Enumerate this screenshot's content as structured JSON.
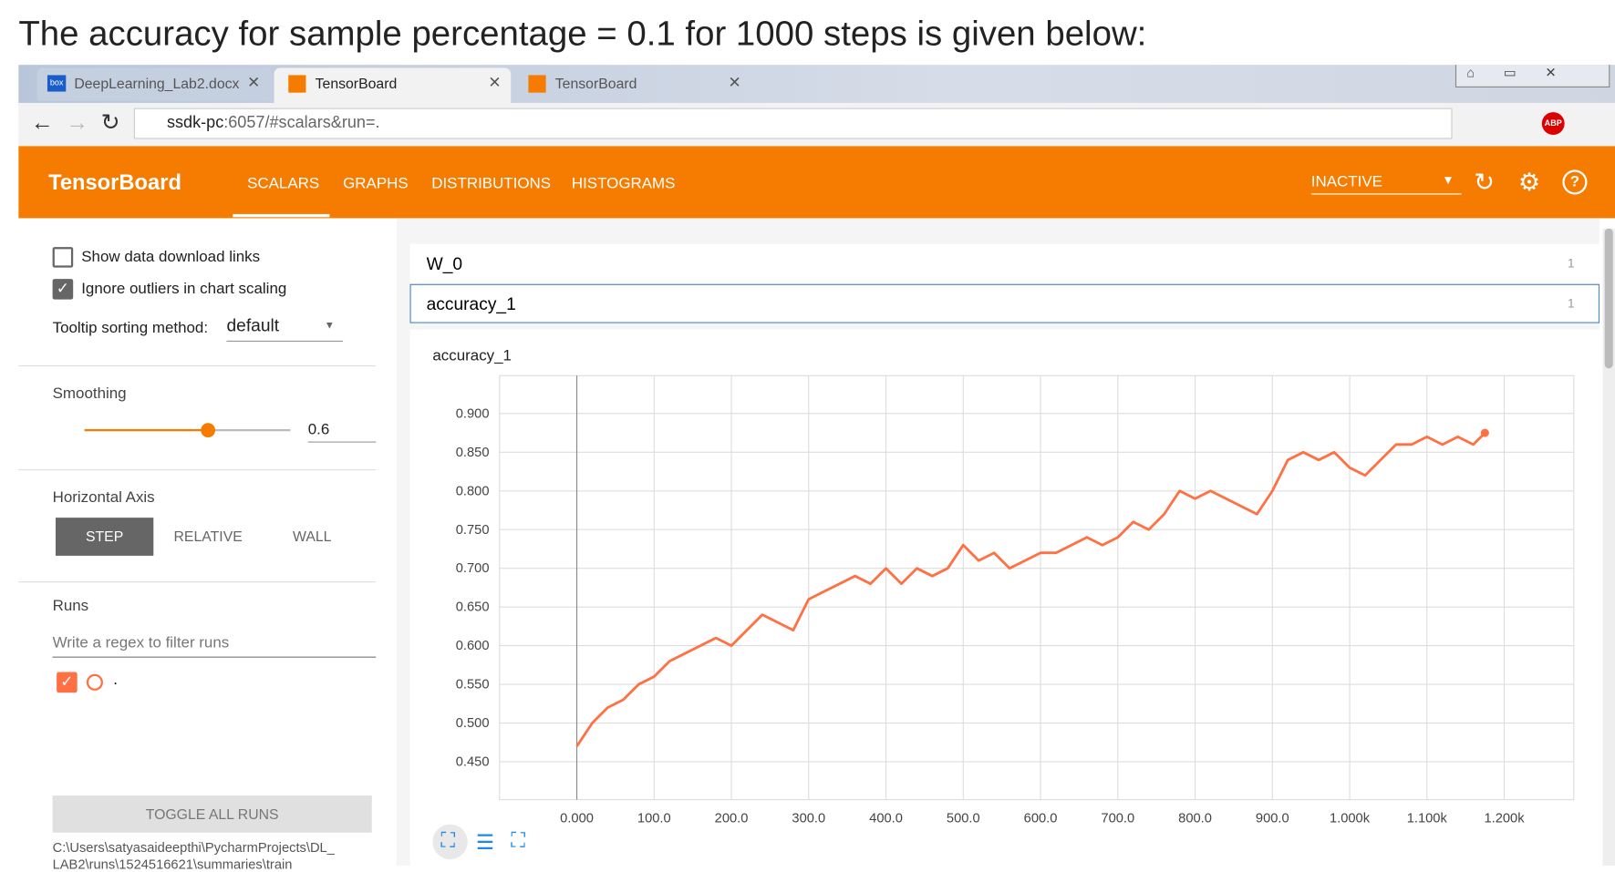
{
  "heading": "The accuracy for sample percentage = 0.1 for 1000 steps is given below:",
  "browser": {
    "tabs": [
      "DeepLearning_Lab2.docx",
      "TensorBoard",
      "TensorBoard"
    ],
    "tab_icon": "box",
    "url_host": "ssdk-pc",
    "url_rest": ":6057/#scalars&run=.",
    "abp": "ABP"
  },
  "toolbar": {
    "app": "TensorBoard",
    "nav": [
      "SCALARS",
      "GRAPHS",
      "DISTRIBUTIONS",
      "HISTOGRAMS"
    ],
    "run_state": "INACTIVE"
  },
  "sidebar": {
    "show_download": "Show data download links",
    "ignore_outliers": "Ignore outliers in chart scaling",
    "tooltip_label": "Tooltip sorting method:",
    "tooltip_value": "default",
    "smoothing_label": "Smoothing",
    "smoothing_value": 0.6,
    "axis_label": "Horizontal Axis",
    "axis_options": [
      "STEP",
      "RELATIVE",
      "WALL"
    ],
    "runs_label": "Runs",
    "runs_filter": "Write a regex to filter runs",
    "run_name": ".",
    "toggle": "TOGGLE ALL RUNS",
    "path_lines": [
      "C:\\Users\\satyasaideepthi\\PycharmProjects\\DL_",
      "LAB2\\runs\\1524516621\\summaries\\train"
    ]
  },
  "sections": [
    {
      "name": "W_0",
      "count": 1
    },
    {
      "name": "accuracy_1",
      "count": 1
    }
  ],
  "chart_data": {
    "type": "line",
    "title": "accuracy_1",
    "color": "#ff7043",
    "grid": true,
    "x": [
      0,
      20,
      40,
      60,
      80,
      100,
      120,
      140,
      160,
      180,
      200,
      220,
      240,
      260,
      280,
      300,
      320,
      340,
      360,
      380,
      400,
      420,
      440,
      460,
      480,
      500,
      520,
      540,
      560,
      580,
      600,
      620,
      640,
      660,
      680,
      700,
      720,
      740,
      760,
      780,
      800,
      820,
      840,
      860,
      880,
      900,
      920,
      940,
      960,
      980,
      1000,
      1020,
      1040,
      1060,
      1080,
      1100,
      1120,
      1140,
      1160,
      1175
    ],
    "values": [
      0.47,
      0.5,
      0.52,
      0.53,
      0.55,
      0.56,
      0.58,
      0.59,
      0.6,
      0.61,
      0.6,
      0.62,
      0.64,
      0.63,
      0.62,
      0.66,
      0.67,
      0.68,
      0.69,
      0.68,
      0.7,
      0.68,
      0.7,
      0.69,
      0.7,
      0.73,
      0.71,
      0.72,
      0.7,
      0.71,
      0.72,
      0.72,
      0.73,
      0.74,
      0.73,
      0.74,
      0.76,
      0.75,
      0.77,
      0.8,
      0.79,
      0.8,
      0.79,
      0.78,
      0.77,
      0.8,
      0.84,
      0.85,
      0.84,
      0.85,
      0.83,
      0.82,
      0.84,
      0.86,
      0.86,
      0.87,
      0.86,
      0.87,
      0.86,
      0.875
    ],
    "xlim": [
      -100,
      1290
    ],
    "ylim": [
      0.401,
      0.949
    ],
    "xticks": [
      {
        "value": 0,
        "label": "0.000"
      },
      {
        "value": 100,
        "label": "100.0"
      },
      {
        "value": 200,
        "label": "200.0"
      },
      {
        "value": 300,
        "label": "300.0"
      },
      {
        "value": 400,
        "label": "400.0"
      },
      {
        "value": 500,
        "label": "500.0"
      },
      {
        "value": 600,
        "label": "600.0"
      },
      {
        "value": 700,
        "label": "700.0"
      },
      {
        "value": 800,
        "label": "800.0"
      },
      {
        "value": 900,
        "label": "900.0"
      },
      {
        "value": 1000,
        "label": "1.000k"
      },
      {
        "value": 1100,
        "label": "1.100k"
      },
      {
        "value": 1200,
        "label": "1.200k"
      }
    ],
    "yticks": [
      {
        "value": 0.45,
        "label": "0.450"
      },
      {
        "value": 0.5,
        "label": "0.500"
      },
      {
        "value": 0.55,
        "label": "0.550"
      },
      {
        "value": 0.6,
        "label": "0.600"
      },
      {
        "value": 0.65,
        "label": "0.650"
      },
      {
        "value": 0.7,
        "label": "0.700"
      },
      {
        "value": 0.75,
        "label": "0.750"
      },
      {
        "value": 0.8,
        "label": "0.800"
      },
      {
        "value": 0.85,
        "label": "0.850"
      },
      {
        "value": 0.9,
        "label": "0.900"
      }
    ]
  }
}
